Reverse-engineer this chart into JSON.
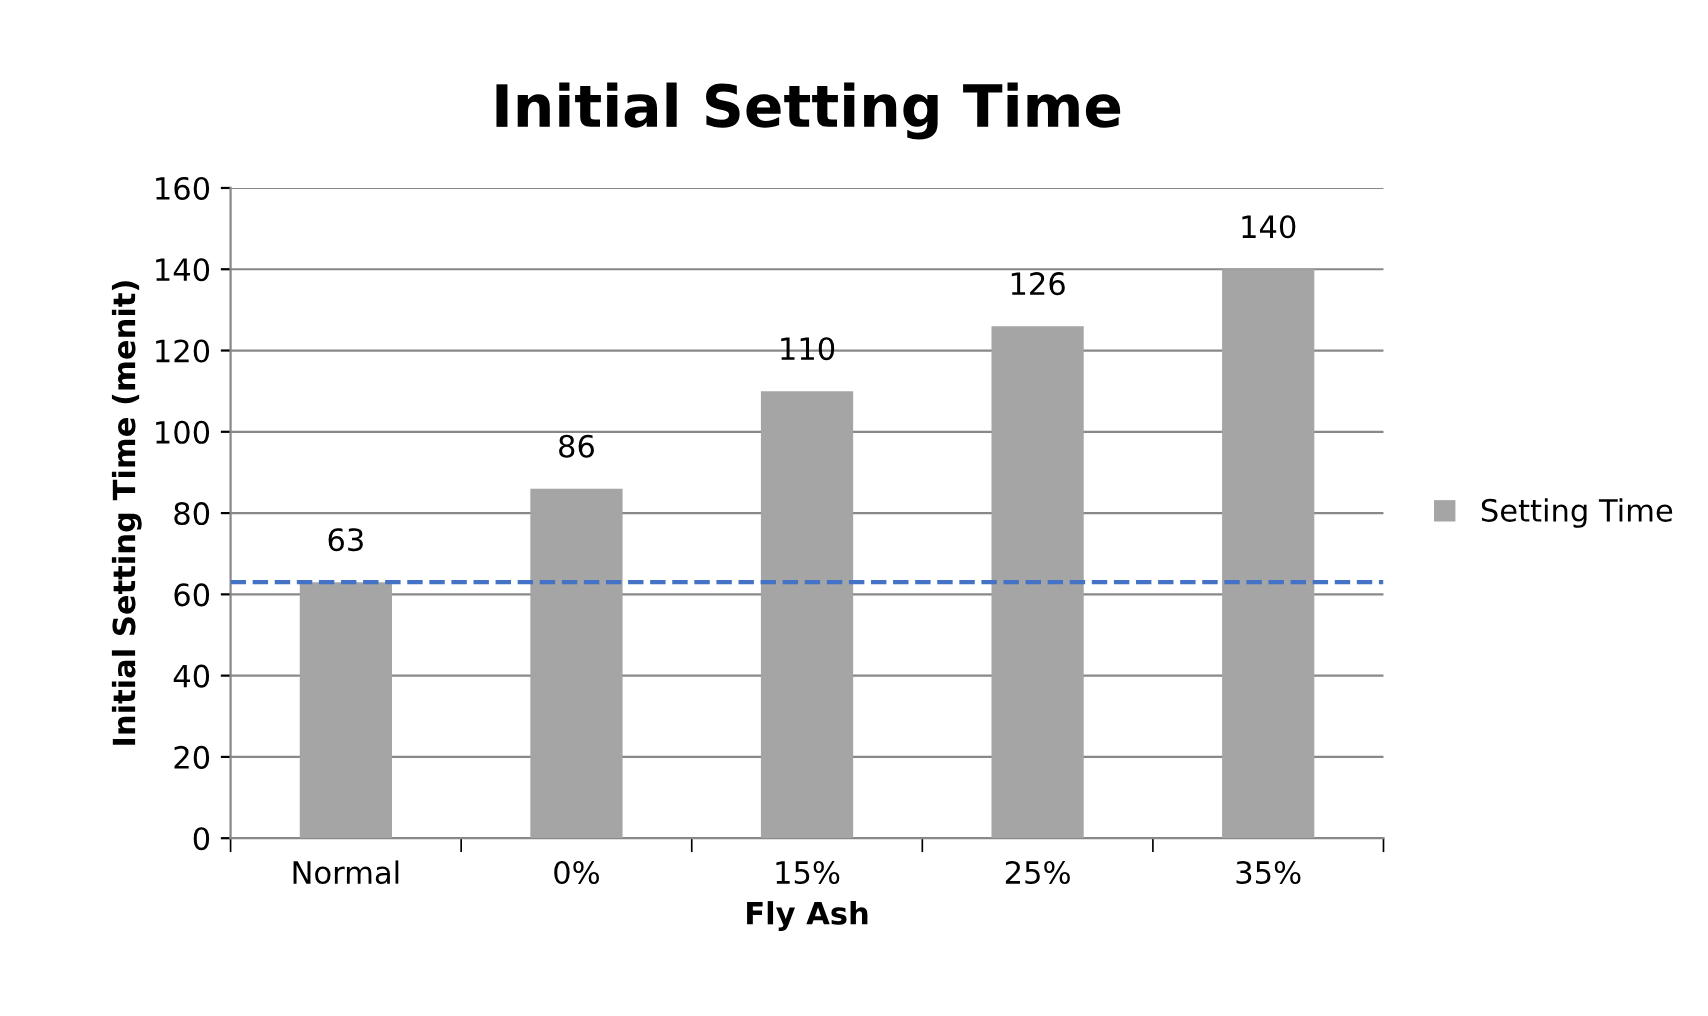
{
  "chart_data": {
    "type": "bar",
    "title": "Initial Setting Time",
    "xlabel": "Fly Ash",
    "ylabel": "Initial Setting Time (menit)",
    "categories": [
      "Normal",
      "0%",
      "15%",
      "25%",
      "35%"
    ],
    "series": [
      {
        "name": "Setting Time",
        "color": "#a5a5a5",
        "values": [
          63,
          86,
          110,
          126,
          140
        ]
      }
    ],
    "ylim": [
      0,
      160
    ],
    "yticks": [
      0,
      20,
      40,
      60,
      80,
      100,
      120,
      140,
      160
    ],
    "grid": "y",
    "legend": "right",
    "data_labels": true,
    "ref_lines": [
      {
        "axis": "y",
        "value": 63,
        "color": "#4472c4",
        "line_style": "dashed"
      }
    ]
  }
}
